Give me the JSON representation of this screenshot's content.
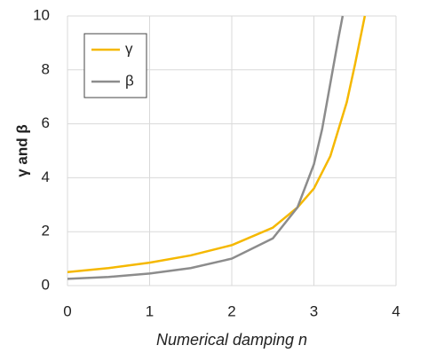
{
  "chart_data": {
    "type": "line",
    "x_label": "Numerical damping n",
    "y_label": "γ and β",
    "series": [
      {
        "name": "γ",
        "color": "#f5b800",
        "x": [
          0,
          0.5,
          1,
          1.5,
          2,
          2.5,
          2.8,
          3,
          3.2,
          3.4,
          3.5,
          3.62
        ],
        "values": [
          0.5,
          0.65,
          0.85,
          1.12,
          1.5,
          2.15,
          2.9,
          3.6,
          4.8,
          6.8,
          8.2,
          10
        ]
      },
      {
        "name": "β",
        "color": "#8c8c8c",
        "x": [
          0,
          0.5,
          1,
          1.5,
          2,
          2.5,
          2.8,
          3,
          3.1,
          3.2,
          3.3,
          3.35
        ],
        "values": [
          0.25,
          0.32,
          0.45,
          0.65,
          1.0,
          1.75,
          2.9,
          4.5,
          5.8,
          7.5,
          9.2,
          10
        ]
      }
    ],
    "xlim": [
      0,
      4
    ],
    "xticks": [
      0,
      1,
      2,
      3,
      4
    ],
    "ylim": [
      0,
      10
    ],
    "yticks": [
      0,
      2,
      4,
      6,
      8,
      10
    ],
    "grid": true,
    "legend": "upper-left"
  }
}
